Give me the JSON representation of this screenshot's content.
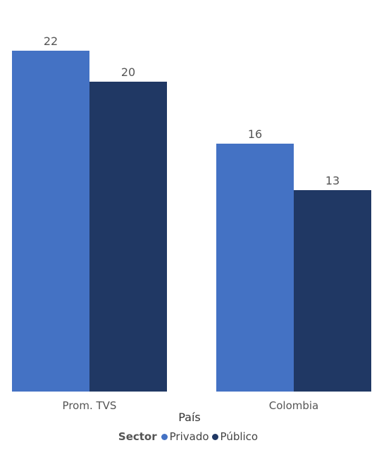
{
  "chart_data": {
    "type": "bar",
    "categories": [
      "Prom. TVS",
      "Colombia"
    ],
    "series": [
      {
        "name": "Privado",
        "values": [
          22,
          16
        ],
        "color": "#4472C4"
      },
      {
        "name": "Público",
        "values": [
          20,
          13
        ],
        "color": "#203864"
      }
    ],
    "xlabel": "País",
    "ylabel": "",
    "ylim": [
      0,
      22
    ],
    "grid": false,
    "legend": {
      "title": "Sector",
      "position": "bottom"
    }
  }
}
